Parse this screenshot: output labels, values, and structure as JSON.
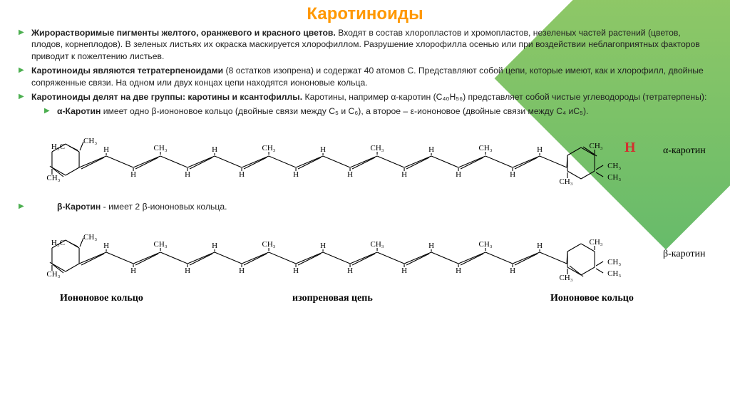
{
  "title": "Каротиноиды",
  "bullets": {
    "b1_bold": "Жирорастворимые пигменты желтого, оранжевого и  красного цветов.",
    "b1_rest": " Входят в состав хлоропластов и хромопластов, незеленых  частей растений (цветов, плодов, корнеплодов). В зеленых листьях их окраска маскируется хлорофиллом.  Разрушение хлорофилла осенью или при воздействии неблагоприятных факторов приводит к пожелтению листьев.",
    "b2_bold": "Каротиноиды являются тетратерпеноидами",
    "b2_rest": "  (8 остатков изопрена) и содержат 40 атомов С. Представляют собой цепи, которые имеют, как и  хлорофилл, двойные сопряженные связи. На одном или  двух концах цепи находятся иононовые кольца.",
    "b3_bold": "Каротиноиды делят на две группы: каротины и  ксантофиллы.",
    "b3_rest": " Каротины, например α-каротин (C₄₀H₅₆) представляет собой чистые углеводороды (тетратерпены):",
    "s1_bold": "α-Каротин",
    "s1_rest": " имеет одно β-иононовое кольцо  (двойные связи между C₅ и C₆), а второе – ε-иононовое (двойные связи между C₄ иC₅).",
    "s2_bold": "β-Каротин",
    "s2_rest": " - имеет 2 β-иононовых кольца."
  },
  "labels": {
    "alpha": "α-каротин",
    "beta": "β-каротин",
    "ring1": "Иононовое кольцо",
    "chain": "изопреновая цепь",
    "ring2": "Иононовое кольцо",
    "H": "H"
  },
  "chem": {
    "stroke": "#000000",
    "stroke_width": 1.1,
    "text_color": "#000000",
    "font_size": 11,
    "font_family": "Times New Roman, serif"
  }
}
